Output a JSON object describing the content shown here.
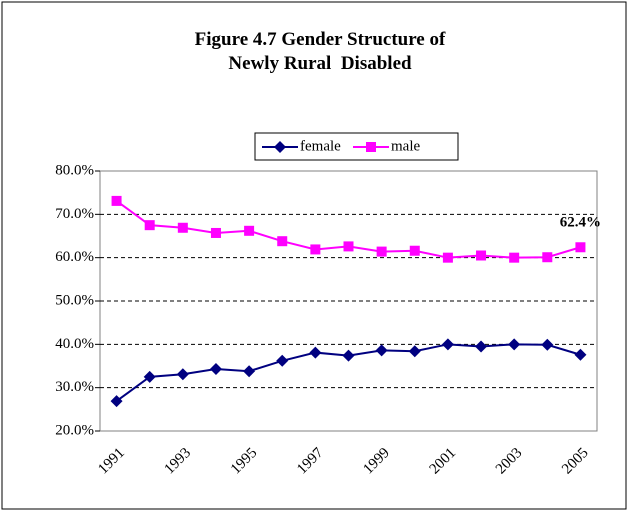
{
  "chart_data": {
    "type": "line",
    "title": "Figure 4.7 Gender Structure of Newly Rural  Disabled",
    "categories": [
      "1991",
      null,
      "1993",
      null,
      "1995",
      null,
      "1997",
      null,
      "1999",
      null,
      "2001",
      null,
      "2003",
      null,
      "2005"
    ],
    "series": [
      {
        "name": "female",
        "color": "#000080",
        "values": [
          26.9,
          32.5,
          33.1,
          34.3,
          33.8,
          36.2,
          38.1,
          37.4,
          38.6,
          38.4,
          40.0,
          39.5,
          40.0,
          39.9,
          37.6
        ]
      },
      {
        "name": "male",
        "color": "#ff00ff",
        "values": [
          73.1,
          67.5,
          66.9,
          65.7,
          66.2,
          63.8,
          61.9,
          62.6,
          61.4,
          61.6,
          60.0,
          60.5,
          60.0,
          60.1,
          62.4
        ],
        "value_labels": [
          null,
          null,
          null,
          null,
          null,
          null,
          null,
          null,
          null,
          null,
          null,
          null,
          null,
          null,
          "62.4%"
        ]
      }
    ],
    "ylim": [
      20,
      80
    ],
    "yticks": [
      {
        "value": 20,
        "label": "20.0%"
      },
      {
        "value": 30,
        "label": "30.0%"
      },
      {
        "value": 40,
        "label": "40.0%"
      },
      {
        "value": 50,
        "label": "50.0%"
      },
      {
        "value": 60,
        "label": "60.0%"
      },
      {
        "value": 70,
        "label": "70.0%"
      },
      {
        "value": 80,
        "label": "80.0%"
      }
    ],
    "grid": true,
    "legend": "top"
  }
}
